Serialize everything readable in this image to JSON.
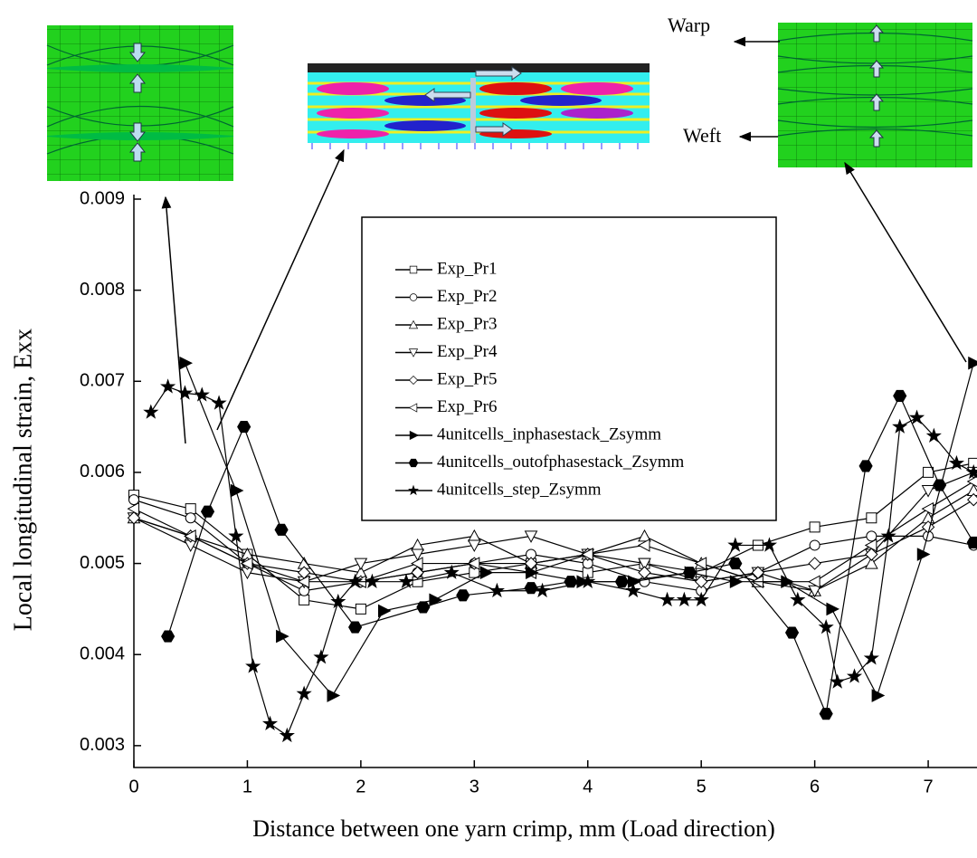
{
  "chart_data": {
    "type": "line",
    "xlabel": "Distance between one yarn crimp, mm (Load direction)",
    "ylabel": "Local longitudinal strain, Exx",
    "xlim": [
      0,
      7.43
    ],
    "ylim": [
      0.00278,
      0.009
    ],
    "xticks": [
      0,
      1,
      2,
      3,
      4,
      5,
      6,
      7
    ],
    "yticks": [
      0.003,
      0.004,
      0.005,
      0.006,
      0.007,
      0.008,
      0.009
    ],
    "insets": {
      "warp": "Warp",
      "weft": "Weft"
    },
    "series": [
      {
        "name": "Exp_Pr1",
        "color": "#000",
        "marker": "square",
        "marker_fill": "#fff",
        "x": [
          0,
          0.5,
          1,
          1.5,
          2,
          2.5,
          3,
          3.5,
          4,
          4.5,
          5,
          5.5,
          6,
          6.5,
          7,
          7.4
        ],
        "values": [
          0.00575,
          0.0056,
          0.0051,
          0.0046,
          0.0045,
          0.0048,
          0.0049,
          0.005,
          0.0049,
          0.005,
          0.0049,
          0.0052,
          0.0054,
          0.0055,
          0.006,
          0.0061
        ]
      },
      {
        "name": "Exp_Pr2",
        "color": "#000",
        "marker": "circle",
        "marker_fill": "#fff",
        "x": [
          0,
          0.5,
          1,
          1.5,
          2,
          2.5,
          3,
          3.5,
          4,
          4.5,
          5,
          5.5,
          6,
          6.5,
          7,
          7.4
        ],
        "values": [
          0.0057,
          0.0055,
          0.005,
          0.0047,
          0.0048,
          0.0049,
          0.005,
          0.0051,
          0.005,
          0.0048,
          0.0047,
          0.0049,
          0.0052,
          0.0053,
          0.0053,
          0.0052
        ]
      },
      {
        "name": "Exp_Pr3",
        "color": "#000",
        "marker": "triangle-up",
        "marker_fill": "#fff",
        "x": [
          0,
          0.5,
          1,
          1.5,
          2,
          2.5,
          3,
          3.5,
          4,
          4.5,
          5,
          5.5,
          6,
          6.5,
          7,
          7.4
        ],
        "values": [
          0.0055,
          0.0053,
          0.0051,
          0.005,
          0.0049,
          0.0052,
          0.0053,
          0.005,
          0.0051,
          0.0053,
          0.005,
          0.0048,
          0.0047,
          0.005,
          0.0055,
          0.0058
        ]
      },
      {
        "name": "Exp_Pr4",
        "color": "#000",
        "marker": "triangle-down",
        "marker_fill": "#fff",
        "x": [
          0,
          0.5,
          1,
          1.5,
          2,
          2.5,
          3,
          3.5,
          4,
          4.5,
          5,
          5.5,
          6,
          6.5,
          7,
          7.4
        ],
        "values": [
          0.0055,
          0.0052,
          0.0049,
          0.0048,
          0.005,
          0.0051,
          0.0052,
          0.0053,
          0.0051,
          0.005,
          0.0048,
          0.0049,
          0.0047,
          0.0051,
          0.0058,
          0.006
        ]
      },
      {
        "name": "Exp_Pr5",
        "color": "#000",
        "marker": "diamond",
        "marker_fill": "#fff",
        "x": [
          0,
          0.5,
          1,
          1.5,
          2,
          2.5,
          3,
          3.5,
          4,
          4.5,
          5,
          5.5,
          6,
          6.5,
          7,
          7.4
        ],
        "values": [
          0.0055,
          0.0053,
          0.005,
          0.0049,
          0.0048,
          0.0049,
          0.005,
          0.005,
          0.0051,
          0.0049,
          0.0048,
          0.0049,
          0.005,
          0.0051,
          0.0054,
          0.0057
        ]
      },
      {
        "name": "Exp_Pr6",
        "color": "#000",
        "marker": "triangle-left",
        "marker_fill": "#fff",
        "x": [
          0,
          0.5,
          1,
          1.5,
          2,
          2.5,
          3,
          3.5,
          4,
          4.5,
          5,
          5.5,
          6,
          6.5,
          7,
          7.4
        ],
        "values": [
          0.0056,
          0.0053,
          0.005,
          0.0048,
          0.0048,
          0.005,
          0.005,
          0.0049,
          0.0051,
          0.0052,
          0.005,
          0.0048,
          0.0048,
          0.0052,
          0.0056,
          0.0059
        ]
      },
      {
        "name": "4unitcells_inphasestack_Zsymm",
        "color": "#000",
        "marker": "triangle-right",
        "marker_fill": "#000",
        "x": [
          0.45,
          0.9,
          1.3,
          1.75,
          2.2,
          2.65,
          3.1,
          3.5,
          3.95,
          4.4,
          4.9,
          5.3,
          5.75,
          6.15,
          6.55,
          6.95,
          7.4
        ],
        "values": [
          0.0072,
          0.0058,
          0.0042,
          0.00355,
          0.00448,
          0.0046,
          0.0049,
          0.0049,
          0.0048,
          0.0048,
          0.0049,
          0.0048,
          0.0048,
          0.0045,
          0.00355,
          0.0051,
          0.0072
        ]
      },
      {
        "name": "4unitcells_outofphasestack_Zsymm",
        "color": "#000",
        "marker": "hexagon",
        "marker_fill": "#000",
        "x": [
          0.3,
          0.65,
          0.97,
          1.3,
          1.95,
          2.55,
          2.9,
          3.5,
          3.85,
          4.3,
          4.9,
          5.3,
          5.8,
          6.1,
          6.45,
          6.75,
          7.1,
          7.4
        ],
        "values": [
          0.0042,
          0.00557,
          0.0065,
          0.00537,
          0.0043,
          0.00452,
          0.00465,
          0.00473,
          0.0048,
          0.0048,
          0.0049,
          0.005,
          0.00424,
          0.00335,
          0.00607,
          0.00684,
          0.00586,
          0.00523
        ]
      },
      {
        "name": "4unitcells_step_Zsymm",
        "color": "#000",
        "marker": "star",
        "marker_fill": "#000",
        "x": [
          0.15,
          0.3,
          0.45,
          0.6,
          0.75,
          0.9,
          1.05,
          1.2,
          1.35,
          1.5,
          1.65,
          1.8,
          1.95,
          2.1,
          2.4,
          2.8,
          3.2,
          3.6,
          4.0,
          4.4,
          4.7,
          4.85,
          5.0,
          5.3,
          5.6,
          5.85,
          6.1,
          6.2,
          6.35,
          6.5,
          6.65,
          6.75,
          6.9,
          7.05,
          7.25,
          7.4
        ],
        "values": [
          0.00666,
          0.00694,
          0.00687,
          0.00685,
          0.00676,
          0.0053,
          0.00387,
          0.00324,
          0.00311,
          0.00357,
          0.00397,
          0.00458,
          0.0048,
          0.0048,
          0.0048,
          0.0049,
          0.0047,
          0.0047,
          0.0048,
          0.0047,
          0.0046,
          0.0046,
          0.0046,
          0.0052,
          0.0052,
          0.0046,
          0.0043,
          0.0037,
          0.00376,
          0.00396,
          0.0053,
          0.0065,
          0.0066,
          0.0064,
          0.0061,
          0.006
        ]
      }
    ]
  }
}
